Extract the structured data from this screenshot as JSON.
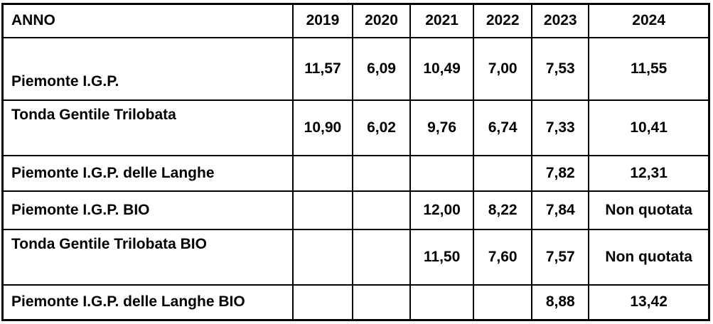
{
  "table": {
    "header": {
      "anno_label": "ANNO",
      "years": [
        "2019",
        "2020",
        "2021",
        "2022",
        "2023",
        "2024"
      ]
    },
    "rows": [
      {
        "label": "Piemonte I.G.P.",
        "values": [
          "11,57",
          "6,09",
          "10,49",
          "7,00",
          "7,53",
          "11,55"
        ]
      },
      {
        "label": "Tonda Gentile Trilobata",
        "values": [
          "10,90",
          "6,02",
          "9,76",
          "6,74",
          "7,33",
          "10,41"
        ]
      },
      {
        "label": "Piemonte I.G.P. delle Langhe",
        "values": [
          "",
          "",
          "",
          "",
          "7,82",
          "12,31"
        ]
      },
      {
        "label": "Piemonte I.G.P. BIO",
        "values": [
          "",
          "",
          "12,00",
          "8,22",
          "7,84",
          "Non quotata"
        ]
      },
      {
        "label": "Tonda Gentile Trilobata BIO",
        "values": [
          "",
          "",
          "11,50",
          "7,60",
          "7,57",
          "Non quotata"
        ]
      },
      {
        "label": "Piemonte I.G.P. delle Langhe BIO",
        "values": [
          "",
          "",
          "",
          "",
          "8,88",
          "13,42"
        ]
      }
    ],
    "colors": {
      "text": "#000000",
      "border": "#000000",
      "background": "#ffffff"
    }
  },
  "chart_data": {
    "type": "table",
    "title": "",
    "columns": [
      "ANNO",
      "2019",
      "2020",
      "2021",
      "2022",
      "2023",
      "2024"
    ],
    "categories": [
      "2019",
      "2020",
      "2021",
      "2022",
      "2023",
      "2024"
    ],
    "series": [
      {
        "name": "Piemonte I.G.P.",
        "values": [
          11.57,
          6.09,
          10.49,
          7.0,
          7.53,
          11.55
        ]
      },
      {
        "name": "Tonda Gentile Trilobata",
        "values": [
          10.9,
          6.02,
          9.76,
          6.74,
          7.33,
          10.41
        ]
      },
      {
        "name": "Piemonte I.G.P. delle Langhe",
        "values": [
          null,
          null,
          null,
          null,
          7.82,
          12.31
        ]
      },
      {
        "name": "Piemonte I.G.P. BIO",
        "values": [
          null,
          null,
          12.0,
          8.22,
          7.84,
          "Non quotata"
        ]
      },
      {
        "name": "Tonda Gentile Trilobata BIO",
        "values": [
          null,
          null,
          11.5,
          7.6,
          7.57,
          "Non quotata"
        ]
      },
      {
        "name": "Piemonte I.G.P. delle Langhe BIO",
        "values": [
          null,
          null,
          null,
          null,
          8.88,
          13.42
        ]
      }
    ],
    "layout": {
      "grid": "on",
      "decimal_separator": "comma"
    }
  }
}
